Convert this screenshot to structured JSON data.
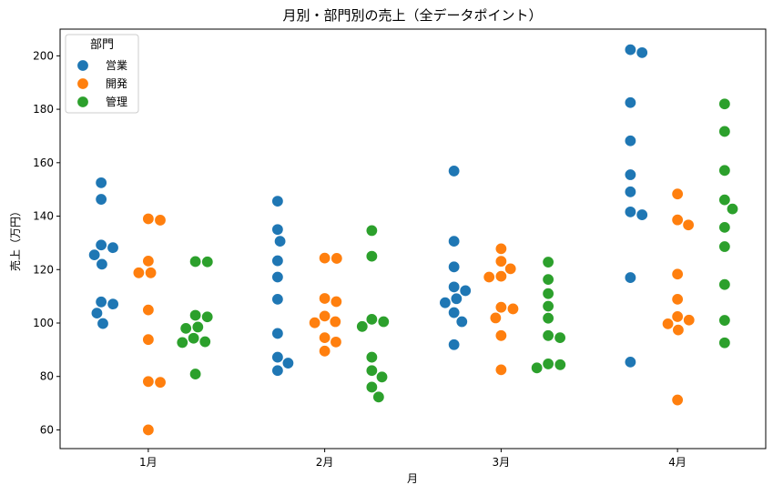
{
  "chart_data": {
    "type": "scatter",
    "subtype": "swarm",
    "title": "月別・部門別の売上（全データポイント）",
    "xlabel": "月",
    "ylabel": "売上（万円）",
    "categories": [
      "1月",
      "2月",
      "3月",
      "4月"
    ],
    "ylim": [
      53,
      210
    ],
    "yticks": [
      60,
      80,
      100,
      120,
      140,
      160,
      180,
      200
    ],
    "grid": false,
    "legend": {
      "title": "部門",
      "placement": "top-left"
    },
    "series": [
      {
        "name": "営業",
        "color": "#1f77b4",
        "points": [
          {
            "category": "1月",
            "values": [
              152.5,
              146.3,
              129.2,
              128.2,
              125.5,
              122.0,
              107.9,
              107.1,
              103.7,
              99.8
            ]
          },
          {
            "category": "2月",
            "values": [
              145.6,
              135.0,
              130.6,
              123.3,
              117.2,
              108.9,
              96.1,
              87.2,
              85.0,
              82.2
            ]
          },
          {
            "category": "3月",
            "values": [
              156.9,
              130.6,
              121.0,
              113.5,
              112.1,
              109.1,
              107.6,
              103.9,
              100.5,
              91.9
            ]
          },
          {
            "category": "4月",
            "values": [
              202.3,
              201.2,
              182.5,
              168.2,
              155.5,
              149.1,
              141.6,
              140.5,
              117.0,
              85.4
            ]
          }
        ]
      },
      {
        "name": "開発",
        "color": "#ff7f0e",
        "points": [
          {
            "category": "1月",
            "values": [
              139.0,
              138.5,
              123.2,
              118.8,
              118.8,
              104.9,
              93.8,
              78.1,
              77.8,
              60.0
            ]
          },
          {
            "category": "2月",
            "values": [
              124.3,
              124.2,
              109.2,
              108.0,
              102.6,
              100.5,
              100.1,
              94.5,
              92.9,
              89.5
            ]
          },
          {
            "category": "3月",
            "values": [
              127.8,
              123.1,
              120.3,
              117.5,
              117.2,
              105.9,
              105.3,
              101.9,
              95.3,
              82.5
            ]
          },
          {
            "category": "4月",
            "values": [
              148.3,
              138.6,
              136.7,
              118.3,
              108.9,
              102.4,
              101.1,
              99.7,
              97.4,
              71.2
            ]
          }
        ]
      },
      {
        "name": "管理",
        "color": "#2ca02c",
        "points": [
          {
            "category": "1月",
            "values": [
              123.0,
              122.9,
              102.9,
              102.3,
              98.5,
              98.0,
              94.3,
              93.0,
              92.7,
              80.9
            ]
          },
          {
            "category": "2月",
            "values": [
              134.6,
              125.0,
              101.4,
              100.5,
              98.7,
              87.2,
              82.2,
              79.8,
              76.0,
              72.3
            ]
          },
          {
            "category": "3月",
            "values": [
              122.8,
              116.3,
              111.0,
              106.3,
              101.8,
              95.3,
              94.5,
              84.7,
              84.4,
              83.2
            ]
          },
          {
            "category": "4月",
            "values": [
              182.0,
              171.7,
              157.1,
              146.1,
              142.7,
              135.8,
              128.6,
              114.4,
              101.0,
              92.6
            ]
          }
        ]
      }
    ]
  }
}
